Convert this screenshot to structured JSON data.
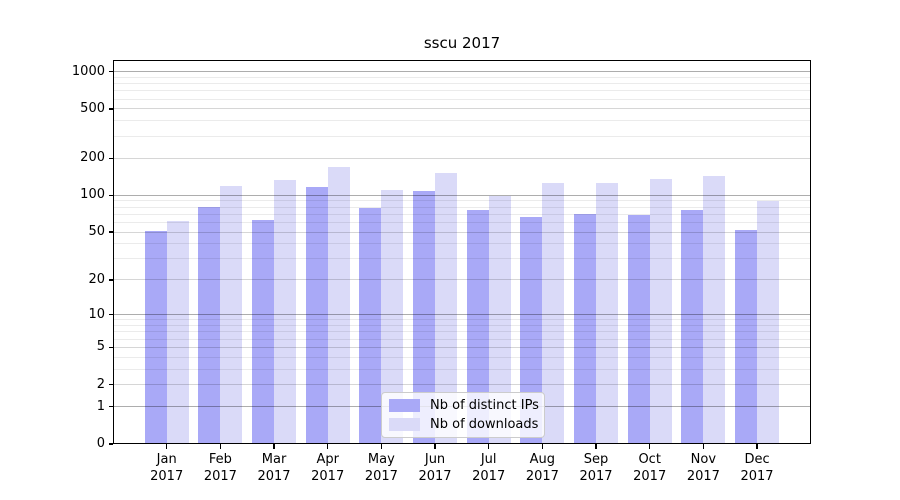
{
  "chart_data": {
    "type": "bar",
    "title": "sscu 2017",
    "categories": [
      "Jan 2017",
      "Feb 2017",
      "Mar 2017",
      "Apr 2017",
      "May 2017",
      "Jun 2017",
      "Jul 2017",
      "Aug 2017",
      "Sep 2017",
      "Oct 2017",
      "Nov 2017",
      "Dec 2017"
    ],
    "series": [
      {
        "name": "Nb of distinct IPs",
        "color": "#a9a9f7",
        "values": [
          51,
          80,
          63,
          116,
          79,
          109,
          76,
          66,
          70,
          69,
          76,
          52
        ]
      },
      {
        "name": "Nb of downloads",
        "color": "#dadaf8",
        "values": [
          62,
          120,
          133,
          171,
          111,
          152,
          99,
          126,
          126,
          136,
          143,
          89
        ]
      }
    ],
    "yscale": "log10(1+x)",
    "yticks": [
      1000,
      500,
      200,
      100,
      50,
      20,
      10,
      5,
      2,
      1,
      0
    ],
    "ylim": [
      0,
      1260
    ],
    "xlabel": "",
    "ylabel": "",
    "grid": true,
    "legend_position": "lower center"
  }
}
